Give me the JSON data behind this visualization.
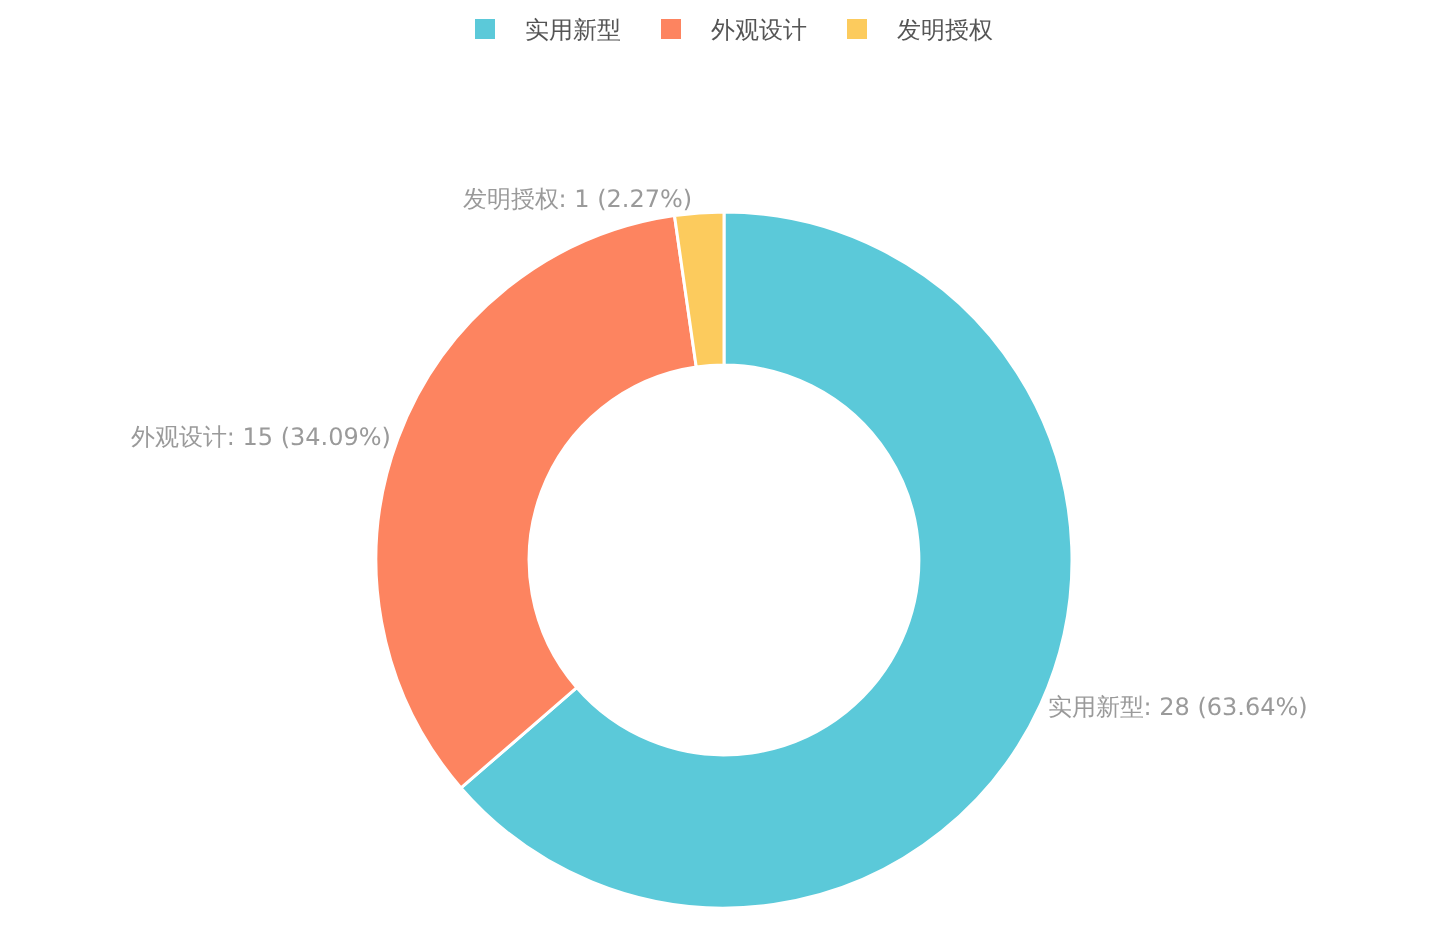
{
  "chart_data": {
    "type": "donut",
    "categories": [
      "实用新型",
      "外观设计",
      "发明授权"
    ],
    "values": [
      28,
      15,
      1
    ],
    "colors": [
      "#5bc9d9",
      "#fd8460",
      "#fccb5d"
    ],
    "value_labels": [
      "实用新型: 28 (63.64%)",
      "外观设计: 15 (34.09%)",
      "发明授权: 1 (2.27%)"
    ],
    "legend": "top"
  }
}
